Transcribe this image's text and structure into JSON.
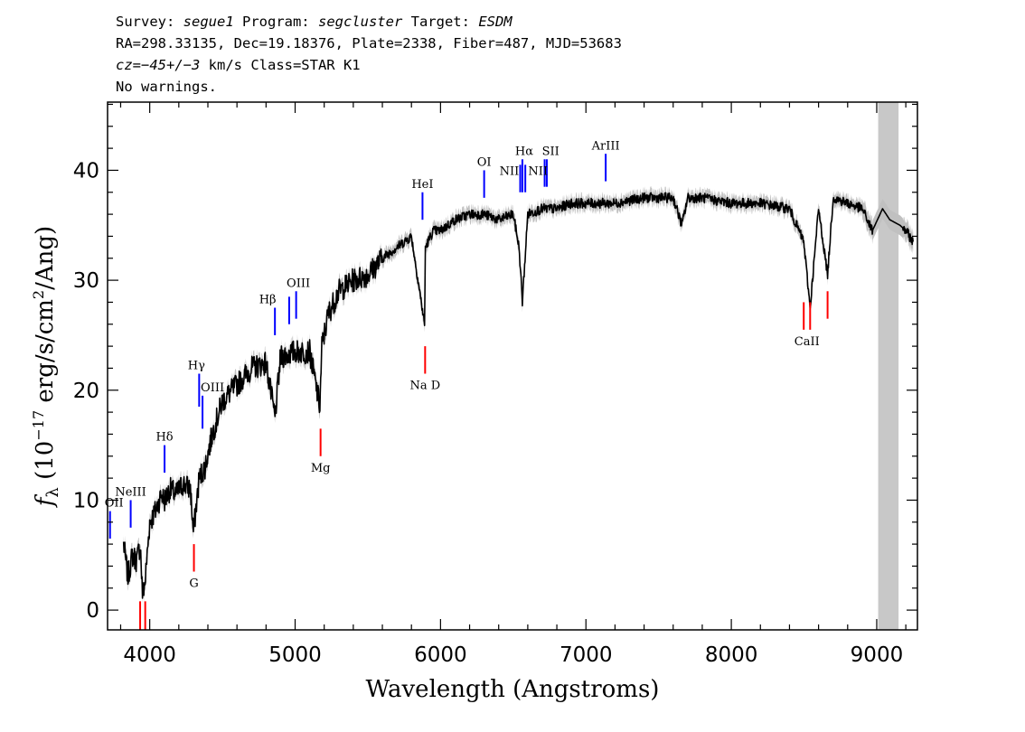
{
  "header": {
    "line1": {
      "survey_label": "Survey: ",
      "survey": "segue1",
      "program_label": " Program: ",
      "program": "segcluster",
      "target_label": " Target: ",
      "target": "ESDM"
    },
    "line2": "RA=298.33135, Dec=19.18376, Plate=2338, Fiber=487, MJD=53683",
    "line3": {
      "cz_label": "cz=",
      "cz_value": "−45+/−3",
      "rest": " km/s Class=STAR K1"
    },
    "line4": "No warnings."
  },
  "colors": {
    "spectrum": "#000000",
    "error_band": "#c0c0c0",
    "emission_lines": "#0000ff",
    "absorption_lines": "#ff0000",
    "masked_region": "#c8c8c8"
  },
  "chart_data": {
    "type": "line",
    "title": "",
    "xlabel": "Wavelength (Angstroms)",
    "ylabel": "f_λ (10⁻¹⁷ erg/s/cm²/Ang)",
    "xlim": [
      3710,
      9280
    ],
    "ylim": [
      -1.8,
      46.2
    ],
    "x_ticks": [
      4000,
      5000,
      6000,
      7000,
      8000,
      9000
    ],
    "y_ticks": [
      0,
      10,
      20,
      30,
      40
    ],
    "x_tick_labels": [
      "4000",
      "5000",
      "6000",
      "7000",
      "8000",
      "9000"
    ],
    "y_tick_labels": [
      "0",
      "10",
      "20",
      "30",
      "40"
    ],
    "masked_region": [
      9010,
      9150
    ],
    "series": [
      {
        "x": [
          3820,
          3850,
          3880,
          3910,
          3935,
          3950,
          3968,
          3985,
          4000,
          4040,
          4080,
          4102,
          4140,
          4180,
          4230,
          4280,
          4300,
          4340,
          4380,
          4430,
          4500,
          4600,
          4700,
          4800,
          4861,
          4900,
          5000,
          5100,
          5170,
          5184,
          5230,
          5300,
          5400,
          5500,
          5600,
          5700,
          5800,
          5890,
          5896,
          5950,
          6000,
          6100,
          6200,
          6300,
          6400,
          6500,
          6540,
          6563,
          6600,
          6700,
          6800,
          6900,
          7000,
          7100,
          7200,
          7400,
          7600,
          7660,
          7700,
          7800,
          8000,
          8200,
          8400,
          8498,
          8542,
          8600,
          8662,
          8700,
          8800,
          8900,
          8970,
          9040,
          9090,
          9160,
          9200,
          9250
        ],
        "y": [
          6,
          3,
          5,
          4.5,
          6,
          1.5,
          2.5,
          5.5,
          8,
          9,
          10.5,
          10,
          11,
          10.5,
          11.5,
          11,
          7,
          12,
          13,
          16,
          19,
          20.5,
          22,
          22.5,
          17.5,
          23,
          23.5,
          23.5,
          18.5,
          24,
          27,
          29,
          30,
          30.5,
          32,
          33,
          34,
          26,
          33,
          34.5,
          34.5,
          35.5,
          36,
          36,
          35.5,
          36,
          33,
          28,
          36,
          36.5,
          36.5,
          37,
          37,
          37,
          37,
          37.5,
          37.5,
          35,
          37.5,
          37.5,
          37,
          37,
          36.5,
          33.5,
          27.5,
          36.5,
          30.5,
          37.5,
          37,
          36.5,
          34.5,
          36.5,
          35.5,
          35,
          34.5,
          33.5
        ]
      }
    ],
    "emission_lines": [
      {
        "label": "OII",
        "x": 3727,
        "y0": 6.5,
        "y1": 9
      },
      {
        "label": "NeIII",
        "x": 3869,
        "y0": 7.5,
        "y1": 10
      },
      {
        "label": "Hδ",
        "x": 4102,
        "y0": 12.5,
        "y1": 15
      },
      {
        "label": "Hγ",
        "x": 4340,
        "y0": 18.5,
        "y1": 21.5
      },
      {
        "label": "OIII",
        "x": 4363,
        "y0": 16.5,
        "y1": 19.5
      },
      {
        "label": "Hβ",
        "x": 4861,
        "y0": 25,
        "y1": 27.5
      },
      {
        "label": "OIII",
        "x": 4959,
        "y0": 26,
        "y1": 28.5
      },
      {
        "label": "OIII",
        "x": 5007,
        "y0": 26.5,
        "y1": 29
      },
      {
        "label": "HeI",
        "x": 5876,
        "y0": 35.5,
        "y1": 38
      },
      {
        "label": "OI",
        "x": 6300,
        "y0": 37.5,
        "y1": 40
      },
      {
        "label": "NII",
        "x": 6548,
        "y0": 38,
        "y1": 40.5
      },
      {
        "label": "Hα",
        "x": 6563,
        "y0": 38,
        "y1": 41
      },
      {
        "label": "NII",
        "x": 6583,
        "y0": 38,
        "y1": 40.5
      },
      {
        "label": "SII",
        "x": 6716,
        "y0": 38.5,
        "y1": 41
      },
      {
        "label": "SII",
        "x": 6731,
        "y0": 38.5,
        "y1": 41
      },
      {
        "label": "ArIII",
        "x": 7136,
        "y0": 39,
        "y1": 41.5
      }
    ],
    "absorption_lines": [
      {
        "label": "",
        "x": 3934,
        "y0": -1.8,
        "y1": 0.8
      },
      {
        "label": "",
        "x": 3969,
        "y0": -1.8,
        "y1": 0.8
      },
      {
        "label": "G",
        "x": 4304,
        "y0": 3.5,
        "y1": 6
      },
      {
        "label": "Mg",
        "x": 5175,
        "y0": 14,
        "y1": 16.5
      },
      {
        "label": "Na D",
        "x": 5894,
        "y0": 21.5,
        "y1": 24
      },
      {
        "label": "",
        "x": 8498,
        "y0": 25.5,
        "y1": 28
      },
      {
        "label": "CaII",
        "x": 8542,
        "y0": 25.5,
        "y1": 28
      },
      {
        "label": "",
        "x": 8662,
        "y0": 26.5,
        "y1": 29
      }
    ]
  }
}
